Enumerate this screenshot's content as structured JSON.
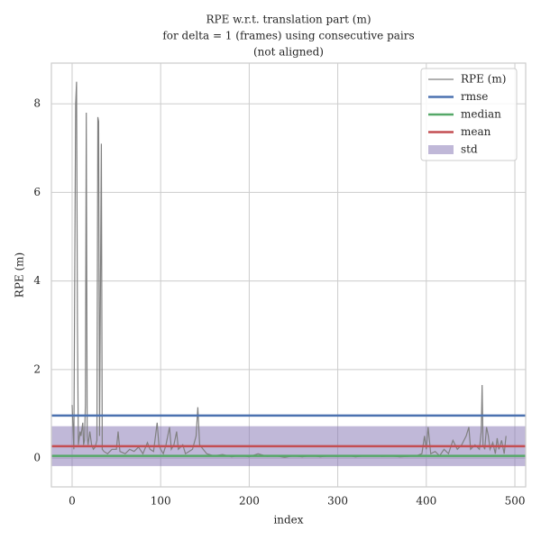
{
  "chart_data": {
    "type": "line",
    "title": [
      "RPE w.r.t. translation part (m)",
      "for delta = 1 (frames) using consecutive pairs",
      "(not aligned)"
    ],
    "x_label": "index",
    "y_label": "RPE (m)",
    "xlim": [
      -23.4,
      512.2
    ],
    "ylim": [
      -0.65,
      8.92
    ],
    "xticks": [
      0,
      100,
      200,
      300,
      400,
      500
    ],
    "yticks": [
      0,
      2,
      4,
      6,
      8
    ],
    "grid": true,
    "legend": "upper right",
    "series": [
      {
        "name": "RPE (m)",
        "color": "#808080",
        "x": [
          0,
          2,
          4,
          5,
          6,
          7,
          9,
          10,
          12,
          13,
          14,
          15,
          16,
          17,
          18,
          20,
          22,
          24,
          26,
          28,
          29,
          30,
          31,
          33,
          34,
          36,
          40,
          45,
          50,
          52,
          54,
          60,
          65,
          70,
          75,
          80,
          85,
          88,
          92,
          96,
          98,
          100,
          103,
          106,
          110,
          112,
          115,
          118,
          120,
          125,
          128,
          132,
          136,
          140,
          142,
          144,
          148,
          152,
          160,
          170,
          180,
          190,
          200,
          210,
          220,
          230,
          240,
          250,
          260,
          270,
          280,
          290,
          300,
          310,
          320,
          330,
          340,
          350,
          360,
          370,
          380,
          390,
          395,
          398,
          400,
          402,
          405,
          410,
          415,
          420,
          425,
          430,
          435,
          440,
          445,
          448,
          450,
          455,
          460,
          462,
          463,
          464,
          466,
          468,
          470,
          472,
          475,
          478,
          480,
          482,
          485,
          488,
          490
        ],
        "values": [
          1.2,
          0.2,
          8.0,
          8.5,
          3.0,
          0.3,
          0.6,
          0.5,
          0.8,
          0.3,
          0.4,
          1.2,
          7.8,
          0.5,
          0.3,
          0.6,
          0.3,
          0.2,
          0.25,
          0.4,
          7.7,
          7.6,
          0.5,
          7.1,
          0.2,
          0.15,
          0.1,
          0.2,
          0.2,
          0.6,
          0.15,
          0.1,
          0.2,
          0.15,
          0.25,
          0.1,
          0.35,
          0.2,
          0.15,
          0.8,
          0.3,
          0.2,
          0.1,
          0.3,
          0.7,
          0.2,
          0.3,
          0.6,
          0.2,
          0.3,
          0.1,
          0.15,
          0.2,
          0.5,
          1.15,
          0.3,
          0.2,
          0.1,
          0.05,
          0.08,
          0.03,
          0.06,
          0.03,
          0.1,
          0.04,
          0.05,
          0.02,
          0.05,
          0.03,
          0.06,
          0.03,
          0.05,
          0.04,
          0.06,
          0.03,
          0.05,
          0.06,
          0.04,
          0.05,
          0.03,
          0.04,
          0.06,
          0.1,
          0.5,
          0.2,
          0.7,
          0.1,
          0.15,
          0.05,
          0.2,
          0.1,
          0.4,
          0.2,
          0.3,
          0.5,
          0.7,
          0.2,
          0.3,
          0.2,
          0.6,
          1.65,
          0.3,
          0.2,
          0.7,
          0.5,
          0.2,
          0.35,
          0.1,
          0.45,
          0.2,
          0.4,
          0.1,
          0.5
        ]
      }
    ],
    "stats": [
      {
        "name": "rmse",
        "color": "#4c72b0",
        "value": 0.96
      },
      {
        "name": "median",
        "color": "#55a868",
        "value": 0.05
      },
      {
        "name": "mean",
        "color": "#c44e52",
        "value": 0.27
      }
    ],
    "std": {
      "name": "std",
      "color": "#8172b2",
      "value": 0.45
    }
  }
}
